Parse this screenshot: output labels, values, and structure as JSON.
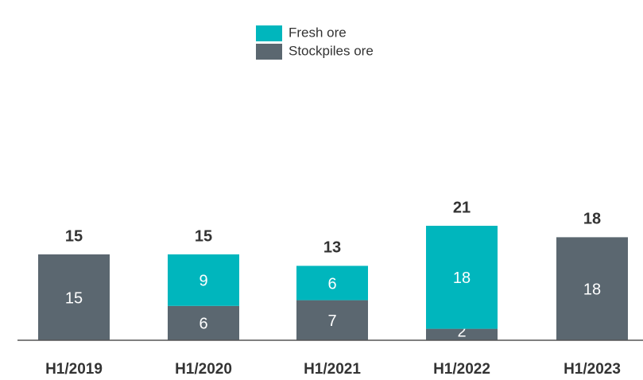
{
  "chart_data": {
    "type": "stacked_bar",
    "categories": [
      "H1/2019",
      "H1/2020",
      "H1/2021",
      "H1/2022",
      "H1/2023"
    ],
    "series": [
      {
        "name": "Stockpiles ore",
        "color": "#5b6770",
        "values": [
          15,
          6,
          7,
          2,
          18
        ]
      },
      {
        "name": "Fresh ore",
        "color": "#00b6bd",
        "values": [
          null,
          9,
          6,
          18,
          null
        ]
      }
    ],
    "totals": [
      15,
      15,
      13,
      21,
      18
    ],
    "ylim": [
      0,
      45
    ]
  }
}
